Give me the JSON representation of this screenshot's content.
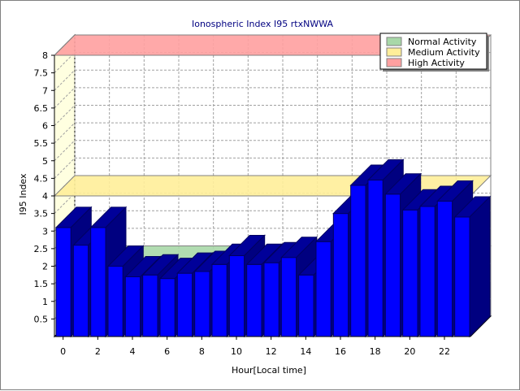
{
  "chart_data": {
    "type": "bar",
    "title": "Ionospheric Index I95 rtxNWWA",
    "xlabel": "Hour[Local time]",
    "ylabel": "I95 Index",
    "ylim": [
      0,
      8
    ],
    "xlim": [
      0,
      24
    ],
    "y_ticks": [
      "0.5",
      "1",
      "1.5",
      "2",
      "2.5",
      "3",
      "3.5",
      "4",
      "4.5",
      "5",
      "5.5",
      "6",
      "6.5",
      "7",
      "7.5",
      "8"
    ],
    "x_ticks": [
      "0",
      "2",
      "4",
      "6",
      "8",
      "10",
      "12",
      "14",
      "16",
      "18",
      "20",
      "22"
    ],
    "grid": true,
    "legend_position": "top-right",
    "hours": [
      0,
      1,
      2,
      3,
      4,
      5,
      6,
      7,
      8,
      9,
      10,
      11,
      12,
      13,
      14,
      15,
      16,
      17,
      18,
      19,
      20,
      21,
      22,
      23
    ],
    "values": [
      3.1,
      2.6,
      3.1,
      2.0,
      1.7,
      1.75,
      1.65,
      1.8,
      1.85,
      2.05,
      2.3,
      2.05,
      2.1,
      2.25,
      1.75,
      2.7,
      3.5,
      4.3,
      4.45,
      4.05,
      3.6,
      3.7,
      3.85,
      3.4
    ],
    "bar_color": "#0000ff",
    "activity_bands": [
      {
        "name": "Normal Activity",
        "value": 2.0,
        "color": "#a8d8a8"
      },
      {
        "name": "Medium Activity",
        "value": 4.0,
        "color": "#ffee99"
      },
      {
        "name": "High Activity",
        "value": 8.0,
        "color": "#ffa0a0"
      }
    ]
  }
}
